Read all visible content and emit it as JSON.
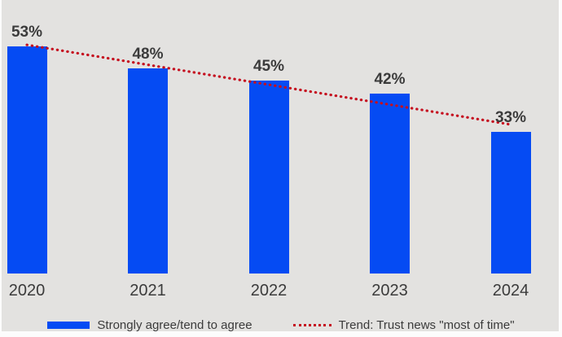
{
  "chart_data": {
    "type": "bar",
    "categories": [
      "2020",
      "2021",
      "2022",
      "2023",
      "2024"
    ],
    "series": [
      {
        "name": "Strongly agree/tend to agree",
        "values": [
          53,
          48,
          45,
          42,
          33
        ]
      }
    ],
    "data_labels": [
      "53%",
      "48%",
      "45%",
      "42%",
      "33%"
    ],
    "trend": {
      "name": "Trend: Trust news \"most of time\"",
      "start_value": 53.4,
      "end_value": 34.8
    },
    "title": "",
    "xlabel": "",
    "ylabel": "",
    "ylim": [
      0,
      64
    ],
    "grid": false,
    "legend_position": "bottom",
    "colors": {
      "bar": "#054bf3",
      "trend": "#c50f1f",
      "text": "#3b3b3b",
      "background": "#e3e2e0"
    }
  },
  "legend": {
    "bar_label": "Strongly agree/tend to agree",
    "trend_label": "Trend: Trust news \"most of time\""
  }
}
